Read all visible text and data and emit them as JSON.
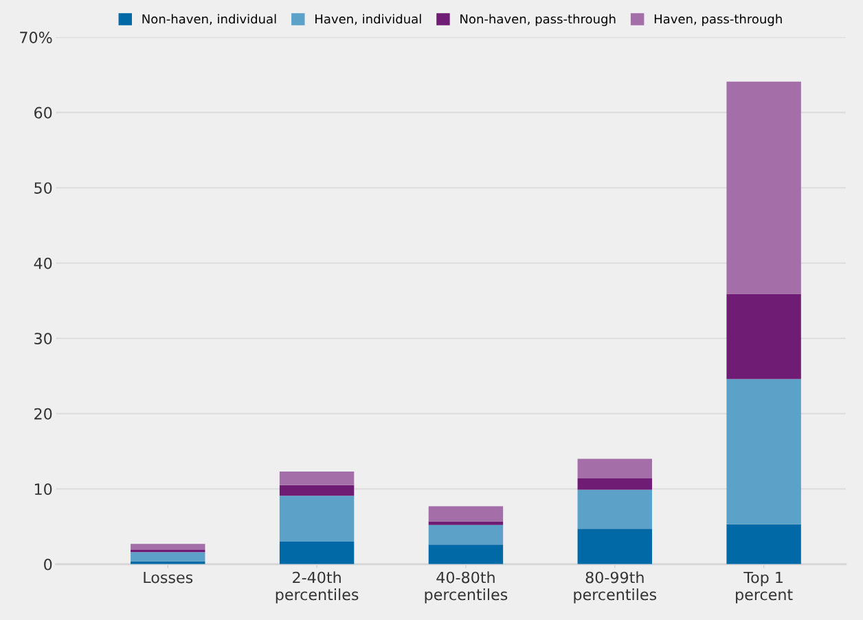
{
  "chart_data": {
    "type": "bar",
    "stacked": true,
    "categories": [
      "Losses",
      "2-40th\npercentiles",
      "40-80th\npercentiles",
      "80-99th\npercentiles",
      "Top 1\npercent"
    ],
    "series": [
      {
        "name": "Non-haven, individual",
        "color": "#0069a6",
        "values": [
          0.4,
          3.0,
          2.6,
          4.7,
          5.3
        ]
      },
      {
        "name": "Haven, individual",
        "color": "#5ca1c7",
        "values": [
          1.2,
          6.1,
          2.6,
          5.2,
          19.3
        ]
      },
      {
        "name": "Non-haven, pass-through",
        "color": "#6f1c75",
        "values": [
          0.3,
          1.4,
          0.5,
          1.5,
          11.3
        ]
      },
      {
        "name": "Haven, pass-through",
        "color": "#a46fa8",
        "values": [
          0.8,
          1.8,
          2.0,
          2.6,
          28.2
        ]
      }
    ],
    "ylim": [
      0,
      70
    ],
    "yticks": [
      0,
      10,
      20,
      30,
      40,
      50,
      60,
      {
        "value": 70,
        "label": "70%"
      }
    ],
    "grid": "y",
    "legend": "top"
  }
}
